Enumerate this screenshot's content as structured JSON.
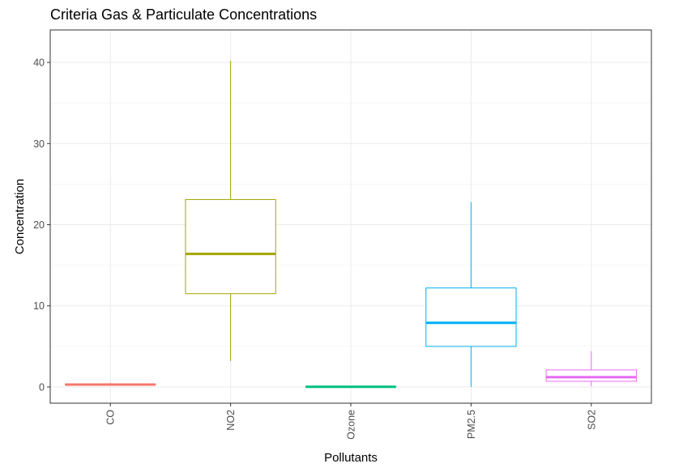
{
  "chart_data": {
    "type": "boxplot",
    "title": "Criteria Gas & Particulate Concentrations",
    "xlabel": "Pollutants",
    "ylabel": "Concentration",
    "ylim": [
      -2,
      44
    ],
    "y_ticks": [
      0,
      10,
      20,
      30,
      40
    ],
    "categories": [
      "CO",
      "NO2",
      "Ozone",
      "PM2.5",
      "SO2"
    ],
    "colors": [
      "#F8766D",
      "#A3A500",
      "#00BF7D",
      "#00B0F6",
      "#E76BF3"
    ],
    "grid": true,
    "legend": "none",
    "boxes": [
      {
        "name": "CO",
        "min": 0.2,
        "q1": 0.25,
        "median": 0.3,
        "q3": 0.35,
        "max": 0.5
      },
      {
        "name": "NO2",
        "min": 3.2,
        "q1": 11.5,
        "median": 16.4,
        "q3": 23.1,
        "max": 40.2
      },
      {
        "name": "Ozone",
        "min": 0.0,
        "q1": 0.0,
        "median": 0.02,
        "q3": 0.04,
        "max": 0.06
      },
      {
        "name": "PM2.5",
        "min": 0.0,
        "q1": 5.0,
        "median": 7.9,
        "q3": 12.2,
        "max": 22.8
      },
      {
        "name": "SO2",
        "min": 0.1,
        "q1": 0.7,
        "median": 1.2,
        "q3": 2.1,
        "max": 4.4
      }
    ]
  }
}
